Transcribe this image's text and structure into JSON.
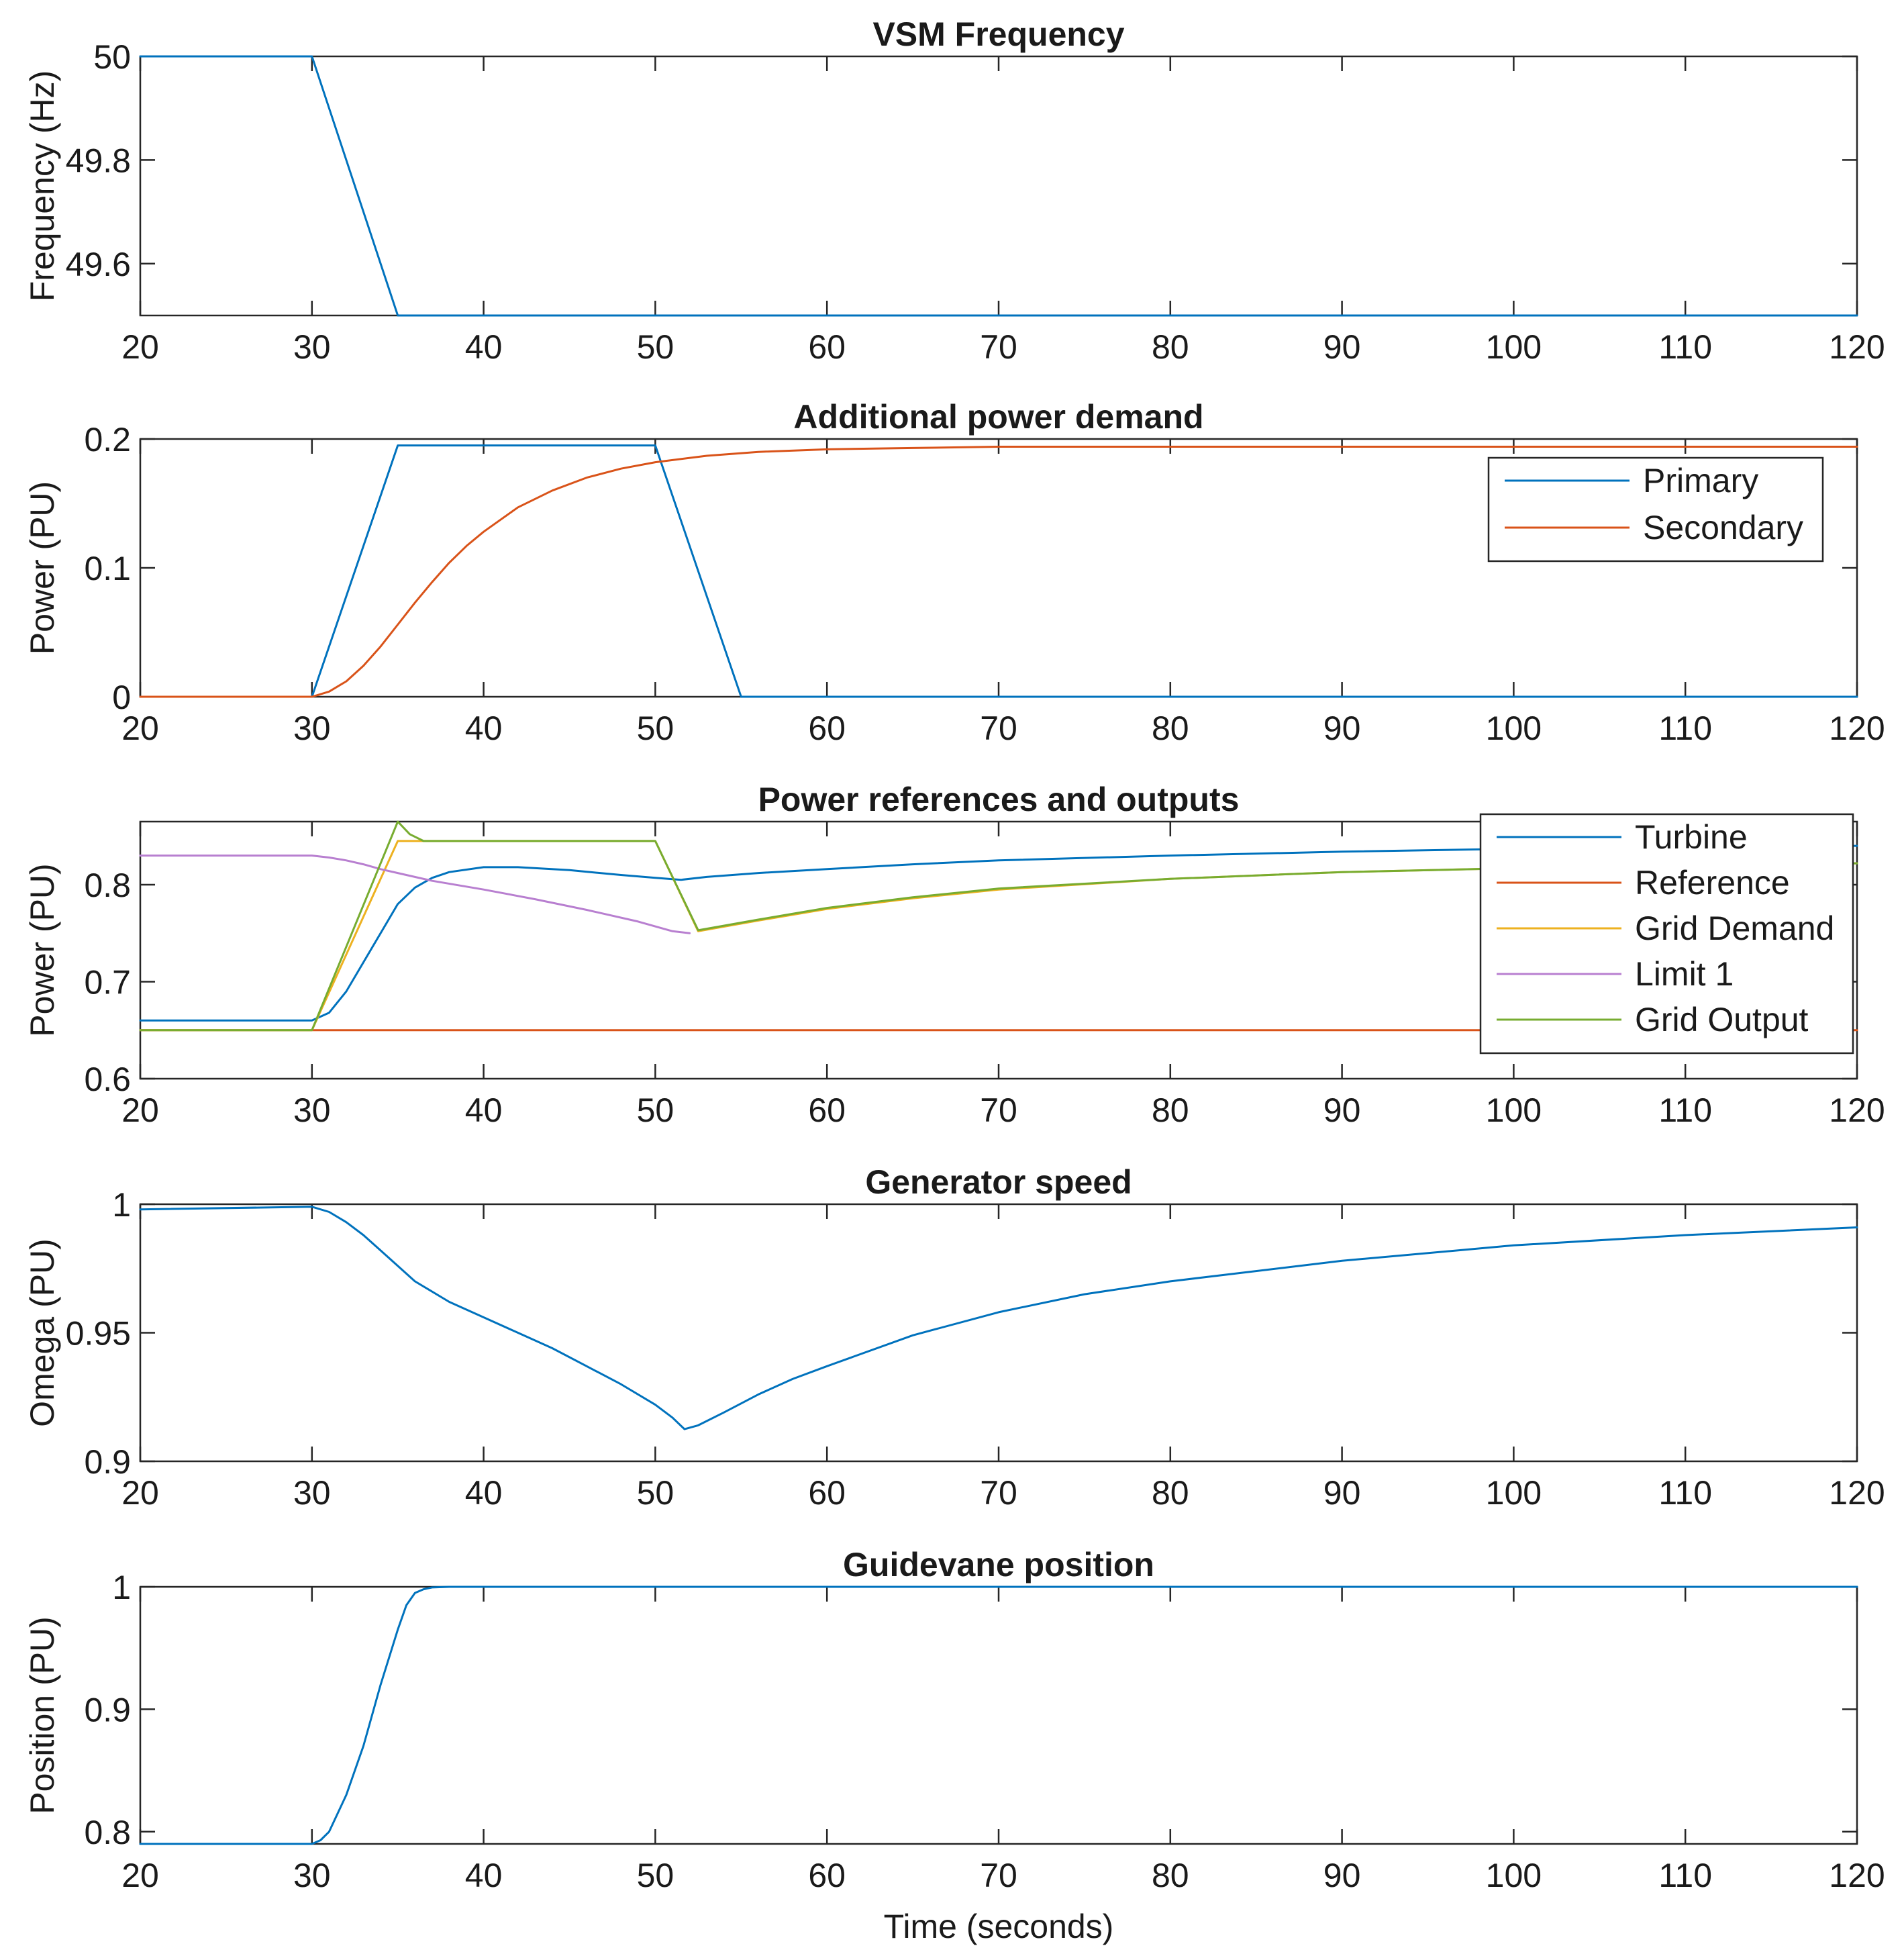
{
  "colors": {
    "c1": "#0072BD",
    "c2": "#D95319",
    "c3": "#EDB120",
    "c4": "#B87FD0",
    "c5": "#77AC30"
  },
  "chart_data": [
    {
      "type": "line",
      "title": "VSM Frequency",
      "xlabel": "",
      "ylabel": "Frequency (Hz)",
      "xlim": [
        20,
        120
      ],
      "ylim": [
        49.5,
        50
      ],
      "xticks": [
        20,
        30,
        40,
        50,
        60,
        70,
        80,
        90,
        100,
        110,
        120
      ],
      "yticks": [
        49.6,
        49.8,
        50
      ],
      "ytick_labels": [
        "49.6",
        "49.8",
        "50"
      ],
      "legend": null,
      "series": [
        {
          "color": "#0072BD",
          "x": [
            20,
            30,
            35,
            120
          ],
          "y": [
            50,
            50,
            49.5,
            49.5
          ]
        }
      ]
    },
    {
      "type": "line",
      "title": "Additional power demand",
      "xlabel": "",
      "ylabel": "Power (PU)",
      "xlim": [
        20,
        120
      ],
      "ylim": [
        0,
        0.2
      ],
      "xticks": [
        20,
        30,
        40,
        50,
        60,
        70,
        80,
        90,
        100,
        110,
        120
      ],
      "yticks": [
        0,
        0.1,
        0.2
      ],
      "ytick_labels": [
        "0",
        "0.1",
        "0.2"
      ],
      "legend": "top-right",
      "series": [
        {
          "name": "Primary",
          "color": "#0072BD",
          "x": [
            20,
            30,
            35,
            50,
            55,
            120
          ],
          "y": [
            0,
            0,
            0.195,
            0.195,
            0,
            0
          ]
        },
        {
          "name": "Secondary",
          "color": "#D95319",
          "x": [
            20,
            30,
            31,
            32,
            33,
            34,
            35,
            36,
            37,
            38,
            39,
            40,
            42,
            44,
            46,
            48,
            50,
            53,
            56,
            60,
            65,
            70,
            80,
            90,
            100,
            120
          ],
          "y": [
            0,
            0,
            0.004,
            0.012,
            0.024,
            0.039,
            0.056,
            0.073,
            0.089,
            0.104,
            0.117,
            0.128,
            0.147,
            0.16,
            0.17,
            0.177,
            0.182,
            0.187,
            0.19,
            0.192,
            0.193,
            0.194,
            0.194,
            0.194,
            0.194,
            0.194
          ]
        }
      ]
    },
    {
      "type": "line",
      "title": "Power references and outputs",
      "xlabel": "",
      "ylabel": "Power (PU)",
      "xlim": [
        20,
        120
      ],
      "ylim": [
        0.6,
        0.865
      ],
      "xticks": [
        20,
        30,
        40,
        50,
        60,
        70,
        80,
        90,
        100,
        110,
        120
      ],
      "yticks": [
        0.6,
        0.7,
        0.8
      ],
      "ytick_labels": [
        "0.6",
        "0.7",
        "0.8"
      ],
      "legend": "top-right",
      "series": [
        {
          "name": "Turbine",
          "color": "#0072BD",
          "x": [
            20,
            30,
            31,
            32,
            33,
            34,
            35,
            36,
            37,
            38,
            40,
            42,
            45,
            48,
            50,
            51.5,
            53,
            56,
            60,
            65,
            70,
            80,
            90,
            100,
            120
          ],
          "y": [
            0.66,
            0.66,
            0.668,
            0.69,
            0.72,
            0.75,
            0.78,
            0.797,
            0.807,
            0.813,
            0.818,
            0.818,
            0.815,
            0.81,
            0.807,
            0.805,
            0.808,
            0.812,
            0.816,
            0.821,
            0.825,
            0.83,
            0.834,
            0.837,
            0.84
          ]
        },
        {
          "name": "Reference",
          "color": "#D95319",
          "x": [
            20,
            120
          ],
          "y": [
            0.65,
            0.65
          ]
        },
        {
          "name": "Grid Demand",
          "color": "#EDB120",
          "x": [
            20,
            30,
            35,
            50,
            52.5,
            56,
            60,
            65,
            70,
            80,
            90,
            100,
            120
          ],
          "y": [
            0.65,
            0.65,
            0.845,
            0.845,
            0.752,
            0.763,
            0.775,
            0.786,
            0.795,
            0.806,
            0.813,
            0.817,
            0.822
          ]
        },
        {
          "name": "Limit 1",
          "color": "#B87FD0",
          "x": [
            20,
            30,
            31,
            32,
            33,
            34,
            35,
            37,
            40,
            43,
            46,
            49,
            51,
            52
          ],
          "y": [
            0.83,
            0.83,
            0.828,
            0.825,
            0.821,
            0.816,
            0.812,
            0.804,
            0.795,
            0.785,
            0.774,
            0.762,
            0.752,
            0.75
          ]
        },
        {
          "name": "Grid Output",
          "color": "#77AC30",
          "x": [
            20,
            30,
            35,
            35.7,
            36.5,
            50,
            52.5,
            56,
            60,
            65,
            70,
            80,
            90,
            100,
            120
          ],
          "y": [
            0.65,
            0.65,
            0.865,
            0.852,
            0.845,
            0.845,
            0.753,
            0.764,
            0.776,
            0.787,
            0.796,
            0.806,
            0.813,
            0.817,
            0.822
          ]
        }
      ]
    },
    {
      "type": "line",
      "title": "Generator speed",
      "xlabel": "",
      "ylabel": "Omega (PU)",
      "xlim": [
        20,
        120
      ],
      "ylim": [
        0.9,
        1.0
      ],
      "xticks": [
        20,
        30,
        40,
        50,
        60,
        70,
        80,
        90,
        100,
        110,
        120
      ],
      "yticks": [
        0.9,
        0.95,
        1
      ],
      "ytick_labels": [
        "0.9",
        "0.95",
        "1"
      ],
      "legend": null,
      "series": [
        {
          "color": "#0072BD",
          "x": [
            20,
            30,
            31,
            32,
            33,
            34,
            35,
            36,
            38,
            40,
            42,
            44,
            46,
            48,
            50,
            51,
            51.7,
            52.5,
            54,
            56,
            58,
            60,
            65,
            70,
            75,
            80,
            90,
            100,
            110,
            120
          ],
          "y": [
            0.998,
            0.999,
            0.997,
            0.993,
            0.988,
            0.982,
            0.976,
            0.97,
            0.962,
            0.956,
            0.95,
            0.944,
            0.937,
            0.93,
            0.922,
            0.917,
            0.9125,
            0.914,
            0.919,
            0.926,
            0.932,
            0.937,
            0.949,
            0.958,
            0.965,
            0.97,
            0.978,
            0.984,
            0.988,
            0.991
          ]
        }
      ]
    },
    {
      "type": "line",
      "title": "Guidevane position",
      "xlabel": "Time (seconds)",
      "ylabel": "Position (PU)",
      "xlim": [
        20,
        120
      ],
      "ylim": [
        0.79,
        1.0
      ],
      "xticks": [
        20,
        30,
        40,
        50,
        60,
        70,
        80,
        90,
        100,
        110,
        120
      ],
      "yticks": [
        0.8,
        0.9,
        1
      ],
      "ytick_labels": [
        "0.8",
        "0.9",
        "1"
      ],
      "legend": null,
      "series": [
        {
          "color": "#0072BD",
          "x": [
            20,
            30,
            30.5,
            31,
            31.5,
            32,
            33,
            34,
            35,
            35.5,
            36,
            36.5,
            37,
            38,
            120
          ],
          "y": [
            0.79,
            0.79,
            0.793,
            0.8,
            0.815,
            0.83,
            0.87,
            0.92,
            0.965,
            0.985,
            0.995,
            0.998,
            0.9995,
            1.0,
            1.0
          ]
        }
      ]
    }
  ]
}
